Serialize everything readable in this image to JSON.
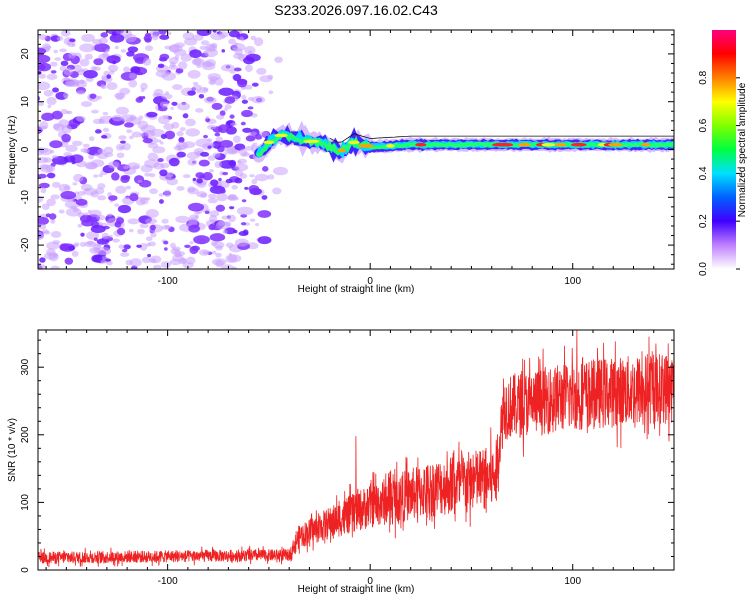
{
  "title": "S233.2026.097.16.02.C43",
  "chart_data": [
    {
      "type": "heatmap",
      "xlabel": "Height of straight line (km)",
      "ylabel": "Frequency (Hz)",
      "xlim": [
        -164,
        150
      ],
      "ylim": [
        -25,
        25
      ],
      "x_ticks": [
        -100,
        0,
        100
      ],
      "x_tick_labels": [
        "-100",
        "0",
        "100"
      ],
      "y_ticks": [
        -20,
        -10,
        0,
        10,
        20
      ],
      "y_tick_labels": [
        "-20",
        "-10",
        "0",
        "10",
        "20"
      ],
      "noise_region_x": [
        -164,
        -48
      ],
      "signal_start_x": -55,
      "signal_track": [
        {
          "x": -55,
          "freq": -1.0
        },
        {
          "x": -50,
          "freq": 1.5
        },
        {
          "x": -45,
          "freq": 3.0
        },
        {
          "x": -38,
          "freq": 2.5
        },
        {
          "x": -30,
          "freq": 1.8
        },
        {
          "x": -22,
          "freq": 1.0
        },
        {
          "x": -15,
          "freq": -0.5
        },
        {
          "x": -8,
          "freq": 1.5
        },
        {
          "x": 0,
          "freq": 0.5
        },
        {
          "x": 20,
          "freq": 1.0
        },
        {
          "x": 60,
          "freq": 1.0
        },
        {
          "x": 100,
          "freq": 1.0
        },
        {
          "x": 150,
          "freq": 1.0
        }
      ],
      "colorbar": {
        "label": "Normalized spectral amplitude",
        "range": [
          0,
          1
        ],
        "ticks": [
          0.0,
          0.2,
          0.4,
          0.6,
          0.8
        ],
        "tick_labels": [
          "0.0",
          "0.2",
          "0.4",
          "0.6",
          "0.8"
        ],
        "colors": [
          "#ffffff",
          "#c080ff",
          "#4000ff",
          "#0060ff",
          "#00e0ff",
          "#00ff40",
          "#80ff00",
          "#ffff00",
          "#ff8000",
          "#ff0000",
          "#ff0080"
        ]
      }
    },
    {
      "type": "line",
      "xlabel": "Height of straight line (km)",
      "ylabel": "SNR (10 * v/v)",
      "xlim": [
        -164,
        150
      ],
      "ylim": [
        0,
        355
      ],
      "x_ticks": [
        -100,
        0,
        100
      ],
      "x_tick_labels": [
        "-100",
        "0",
        "100"
      ],
      "y_ticks": [
        0,
        100,
        200,
        300
      ],
      "y_tick_labels": [
        "0",
        "100",
        "200",
        "300"
      ],
      "line_color": "#ee2222",
      "trend": [
        {
          "x": -164,
          "y": 18
        },
        {
          "x": -40,
          "y": 22
        },
        {
          "x": -35,
          "y": 50
        },
        {
          "x": 0,
          "y": 95
        },
        {
          "x": 30,
          "y": 120
        },
        {
          "x": 62,
          "y": 138
        },
        {
          "x": 66,
          "y": 240
        },
        {
          "x": 100,
          "y": 258
        },
        {
          "x": 150,
          "y": 270
        }
      ],
      "spikes": [
        {
          "x": -7,
          "y": 198
        },
        {
          "x": 102,
          "y": 355
        },
        {
          "x": 141,
          "y": 335
        }
      ]
    }
  ]
}
